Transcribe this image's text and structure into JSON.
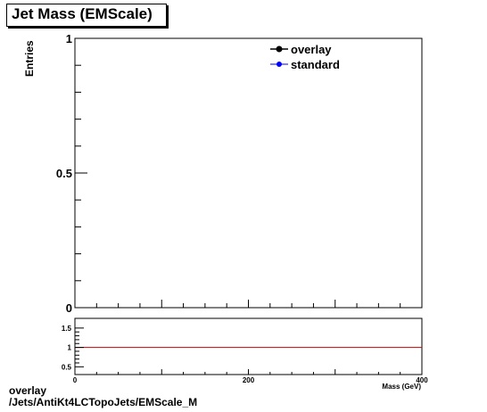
{
  "title": "Jet Mass (EMScale)",
  "chart_data": [
    {
      "type": "line",
      "title": "Jet Mass (EMScale)",
      "ylabel": "Entries",
      "xlabel": "Mass (GeV)",
      "xlim": [
        0,
        400
      ],
      "ylim": [
        0,
        1
      ],
      "y_ticks": [
        "0",
        "0.5",
        "1"
      ],
      "series": [
        {
          "name": "overlay",
          "color": "#000000",
          "x": [],
          "y": []
        },
        {
          "name": "standard",
          "color": "#0000ff",
          "x": [],
          "y": []
        }
      ],
      "legend": "top-right"
    },
    {
      "type": "line",
      "xlim": [
        0,
        400
      ],
      "ylim": [
        0.3,
        1.75
      ],
      "x_ticks": [
        "0",
        "200",
        "400"
      ],
      "y_ticks": [
        "0.5",
        "1",
        "1.5"
      ],
      "reference_line": {
        "y": 1,
        "color": "#cc0000"
      },
      "series": []
    }
  ],
  "footer": {
    "line1": "overlay",
    "line2": "/Jets/AntiKt4LCTopoJets/EMScale_M"
  },
  "colors": {
    "ratio_line": "#cc0000",
    "standard": "#0000ff",
    "overlay": "#000000"
  }
}
